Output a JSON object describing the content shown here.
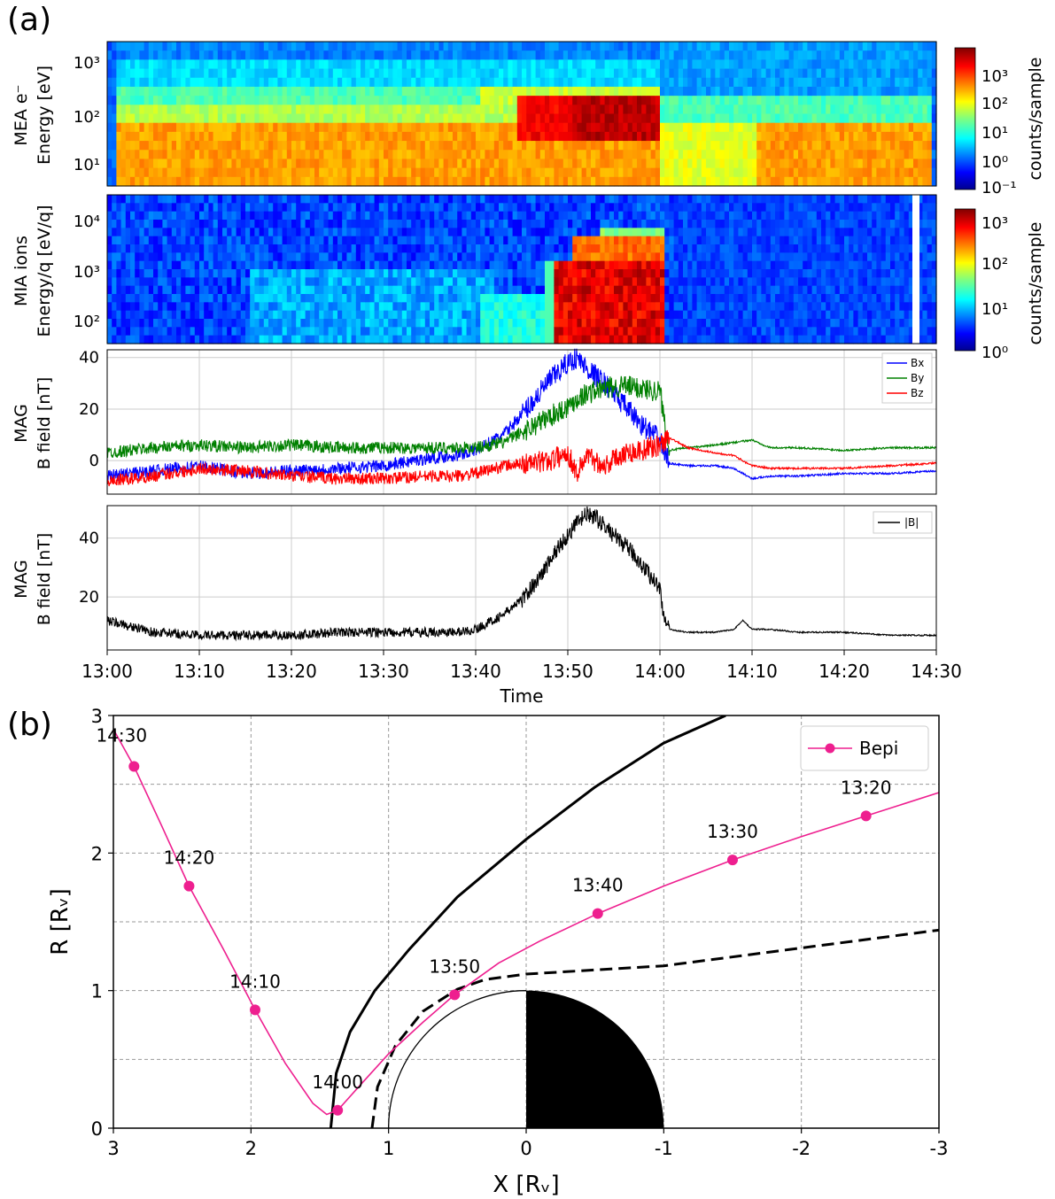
{
  "panel_labels": [
    "(a)",
    "(b)"
  ],
  "colors": {
    "bx": "#0000ff",
    "by": "#008000",
    "bz": "#ff0000",
    "babs": "#000000",
    "bepi": "#ee1f8f"
  },
  "chart_data": [
    {
      "type": "heatmap",
      "ylabel_line1": "MEA e⁻",
      "ylabel_line2": "Energy [eV]",
      "yticks": [
        "10¹",
        "10²",
        "10³"
      ],
      "colorbar_label": "counts/sample",
      "colorbar_ticks": [
        "10⁻¹",
        "10⁰",
        "10¹",
        "10²",
        "10³"
      ],
      "colormap": "jet",
      "note_values": "level relative 0-1 per time segment (minutes since 13:00)"
    },
    {
      "type": "heatmap",
      "ylabel_line1": "MIA ions",
      "ylabel_line2": "Energy/q [eV/q]",
      "yticks": [
        "10²",
        "10³",
        "10⁴"
      ],
      "colorbar_label": "counts/sample",
      "colorbar_ticks": [
        "10⁰",
        "10¹",
        "10²",
        "10³"
      ],
      "colormap": "jet"
    },
    {
      "type": "line",
      "ylabel_line1": "MAG",
      "ylabel_line2": "B field [nT]",
      "yticks": [
        "0",
        "20",
        "40"
      ],
      "ylim": [
        -13,
        43
      ],
      "grid": true,
      "legend": "top-right",
      "series": [
        {
          "name": "Bx",
          "x": [
            0,
            5,
            10,
            15,
            20,
            25,
            30,
            35,
            38,
            40,
            43,
            46,
            48,
            50,
            51,
            52,
            54,
            56,
            58,
            60,
            61,
            63,
            66,
            68,
            70,
            72,
            75,
            80,
            85,
            90
          ],
          "y": [
            -6,
            -4,
            -2,
            -5,
            -4,
            -3,
            -2,
            1,
            2,
            4,
            10,
            22,
            31,
            38,
            40,
            36,
            30,
            22,
            14,
            8,
            -1,
            -2,
            -2,
            -3,
            -7,
            -6,
            -6,
            -5,
            -5,
            -4
          ]
        },
        {
          "name": "By",
          "x": [
            0,
            5,
            10,
            15,
            20,
            25,
            30,
            35,
            38,
            40,
            43,
            46,
            48,
            50,
            51,
            52,
            54,
            56,
            58,
            60,
            61,
            63,
            66,
            68,
            70,
            72,
            75,
            80,
            85,
            90
          ],
          "y": [
            3,
            5,
            6,
            5,
            6,
            5,
            5,
            5,
            5,
            5,
            7,
            13,
            17,
            21,
            24,
            26,
            28,
            29,
            28,
            27,
            4,
            5,
            6,
            7,
            8,
            5,
            5,
            4,
            5,
            5
          ]
        },
        {
          "name": "Bz",
          "x": [
            0,
            5,
            10,
            15,
            20,
            25,
            30,
            35,
            38,
            40,
            43,
            46,
            48,
            50,
            51,
            52,
            54,
            56,
            58,
            60,
            61,
            63,
            66,
            68,
            70,
            72,
            75,
            80,
            85,
            90
          ],
          "y": [
            -8,
            -6,
            -3,
            -4,
            -6,
            -7,
            -7,
            -6,
            -6,
            -5,
            -2,
            -1,
            0,
            3,
            -5,
            2,
            -2,
            3,
            4,
            6,
            9,
            5,
            3,
            2,
            -2,
            -3,
            -3,
            -3,
            -2,
            -1
          ]
        }
      ]
    },
    {
      "type": "line",
      "ylabel_line1": "MAG",
      "ylabel_line2": "B field [nT]",
      "yticks": [
        "20",
        "40"
      ],
      "ylim": [
        2,
        51
      ],
      "grid": true,
      "legend": "top-right",
      "xlabel": "Time",
      "xticks": [
        "13:00",
        "13:10",
        "13:20",
        "13:30",
        "13:40",
        "13:50",
        "14:00",
        "14:10",
        "14:20",
        "14:30"
      ],
      "series": [
        {
          "name": "|B|",
          "x": [
            0,
            5,
            10,
            15,
            20,
            25,
            30,
            35,
            38,
            40,
            43,
            45,
            47,
            49,
            50,
            51,
            52,
            53,
            55,
            57,
            59,
            60,
            60.5,
            61,
            63,
            66,
            68,
            69,
            70,
            72,
            75,
            80,
            85,
            90
          ],
          "y": [
            12,
            8,
            7,
            7,
            7,
            8,
            8,
            8,
            8,
            9,
            14,
            19,
            27,
            37,
            41,
            45,
            48,
            47,
            41,
            35,
            27,
            23,
            12,
            9,
            8,
            8,
            9,
            12,
            9,
            9,
            8,
            8,
            7,
            7
          ]
        }
      ]
    },
    {
      "type": "line",
      "xlabel": "X [Rᵥ]",
      "ylabel": "R [Rᵥ]",
      "xlim": [
        3,
        -3
      ],
      "ylim": [
        0,
        3
      ],
      "xticks": [
        "3",
        "2",
        "1",
        "0",
        "-1",
        "-2",
        "-3"
      ],
      "yticks": [
        "0",
        "1",
        "2",
        "3"
      ],
      "grid": true,
      "legend": "top-right",
      "series": [
        {
          "name": "Bepi",
          "points": [
            [
              2.85,
              2.63
            ],
            [
              2.45,
              1.76
            ],
            [
              1.97,
              0.86
            ],
            [
              1.37,
              0.13
            ],
            [
              0.52,
              0.97
            ],
            [
              -0.52,
              1.56
            ],
            [
              -1.5,
              1.95
            ],
            [
              -2.47,
              2.27
            ]
          ],
          "point_labels": [
            "14:30",
            "14:20",
            "14:10",
            "14:00",
            "13:50",
            "13:40",
            "13:30",
            "13:20"
          ],
          "curve": [
            [
              3.0,
              2.9
            ],
            [
              2.85,
              2.63
            ],
            [
              2.65,
              2.2
            ],
            [
              2.45,
              1.76
            ],
            [
              2.2,
              1.3
            ],
            [
              1.97,
              0.86
            ],
            [
              1.75,
              0.47
            ],
            [
              1.55,
              0.18
            ],
            [
              1.45,
              0.1
            ],
            [
              1.37,
              0.13
            ],
            [
              1.2,
              0.32
            ],
            [
              1.0,
              0.54
            ],
            [
              0.75,
              0.77
            ],
            [
              0.52,
              0.97
            ],
            [
              0.2,
              1.2
            ],
            [
              -0.1,
              1.36
            ],
            [
              -0.52,
              1.56
            ],
            [
              -1.0,
              1.76
            ],
            [
              -1.5,
              1.95
            ],
            [
              -2.0,
              2.12
            ],
            [
              -2.47,
              2.27
            ],
            [
              -3.0,
              2.44
            ]
          ]
        },
        {
          "name": "",
          "curve": [
            [
              1.42,
              0
            ],
            [
              1.38,
              0.4
            ],
            [
              1.28,
              0.7
            ],
            [
              1.1,
              1.0
            ],
            [
              0.85,
              1.3
            ],
            [
              0.5,
              1.68
            ],
            [
              0,
              2.1
            ],
            [
              -0.5,
              2.48
            ],
            [
              -1.0,
              2.8
            ],
            [
              -1.45,
              3.0
            ]
          ]
        },
        {
          "name": "",
          "curve": [
            [
              1.12,
              0
            ],
            [
              1.08,
              0.3
            ],
            [
              0.95,
              0.6
            ],
            [
              0.75,
              0.85
            ],
            [
              0.5,
              1.01
            ],
            [
              0.3,
              1.08
            ],
            [
              0.0,
              1.12
            ],
            [
              -1.0,
              1.18
            ],
            [
              -2.0,
              1.31
            ],
            [
              -3.0,
              1.44
            ]
          ]
        }
      ]
    }
  ]
}
